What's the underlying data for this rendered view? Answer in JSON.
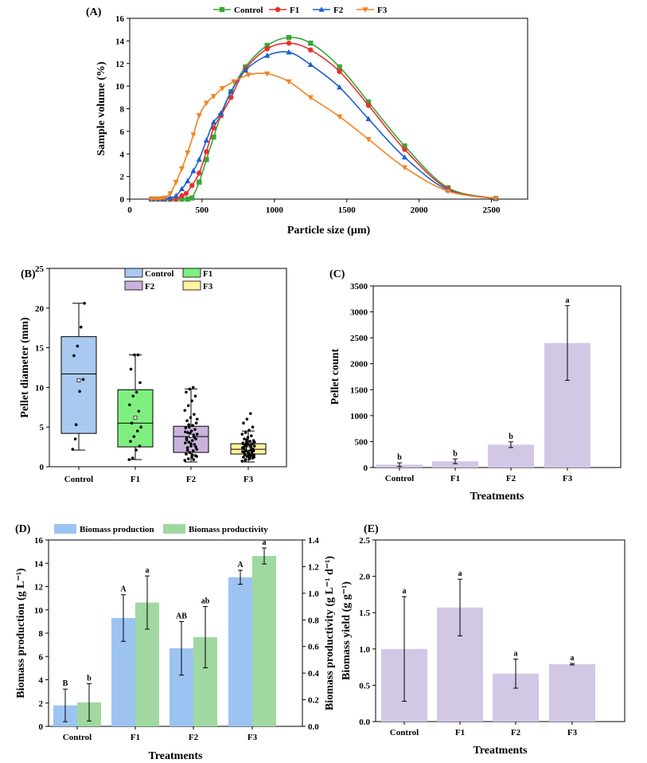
{
  "colors": {
    "control": "#3aa63a",
    "f1": "#e8312a",
    "f2": "#1f5fd0",
    "f3": "#f58220",
    "box_control": "#a9c9f0",
    "box_f1": "#7ff07f",
    "box_f2": "#c9b3dd",
    "box_f3": "#fff2a0",
    "bar_purple": "#d3c7e6",
    "bar_blue": "#9dc3f2",
    "bar_green": "#9fd8a0"
  },
  "chart_data": [
    {
      "id": "A",
      "type": "line",
      "panel_label": "(A)",
      "xlabel": "Particle size (μm)",
      "ylabel": "Sample volume (%)",
      "xlim": [
        0,
        2750
      ],
      "ylim": [
        0,
        16
      ],
      "xticks": [
        "0",
        "500",
        "1000",
        "1500",
        "2000",
        "2500"
      ],
      "yticks": [
        "0",
        "2",
        "4",
        "6",
        "8",
        "10",
        "12",
        "14",
        "16"
      ],
      "legend_position": "top",
      "series": [
        {
          "name": "Control",
          "marker": "square",
          "x": [
            150,
            180,
            210,
            240,
            280,
            320,
            360,
            400,
            430,
            480,
            530,
            580,
            630,
            700,
            800,
            950,
            1100,
            1250,
            1450,
            1650,
            1900,
            2200,
            2530
          ],
          "y": [
            0,
            0,
            0,
            0,
            0,
            0,
            0,
            0,
            0.1,
            1.5,
            3.5,
            5.5,
            7.4,
            9.5,
            11.7,
            13.6,
            14.3,
            13.8,
            11.7,
            8.6,
            4.7,
            1.0,
            0.05
          ]
        },
        {
          "name": "F1",
          "marker": "circle",
          "x": [
            150,
            180,
            210,
            240,
            280,
            320,
            360,
            390,
            430,
            480,
            530,
            580,
            630,
            700,
            800,
            950,
            1100,
            1250,
            1450,
            1650,
            1900,
            2200,
            2530
          ],
          "y": [
            0,
            0,
            0,
            0,
            0,
            0,
            0.3,
            0.5,
            1.2,
            2.3,
            4.2,
            6.3,
            7.4,
            9.0,
            11.5,
            13.3,
            13.8,
            13.2,
            11.3,
            8.3,
            4.4,
            0.9,
            0.05
          ]
        },
        {
          "name": "F2",
          "marker": "triangle-up",
          "x": [
            150,
            180,
            210,
            240,
            280,
            320,
            360,
            400,
            440,
            480,
            530,
            580,
            630,
            700,
            800,
            950,
            1100,
            1250,
            1450,
            1650,
            1900,
            2200,
            2530
          ],
          "y": [
            0,
            0,
            0,
            0,
            0.1,
            0.3,
            0.9,
            1.6,
            2.5,
            3.5,
            5.2,
            6.8,
            7.6,
            9.5,
            11.4,
            12.7,
            13.0,
            11.9,
            9.9,
            7.1,
            3.7,
            0.8,
            0.05
          ]
        },
        {
          "name": "F3",
          "marker": "triangle-down",
          "x": [
            150,
            180,
            210,
            240,
            280,
            320,
            360,
            400,
            440,
            480,
            530,
            580,
            640,
            720,
            820,
            950,
            1100,
            1250,
            1450,
            1650,
            1900,
            2200,
            2530
          ],
          "y": [
            0,
            0,
            0,
            0.1,
            0.5,
            1.5,
            2.7,
            4.1,
            5.7,
            7.4,
            8.5,
            9.1,
            9.8,
            10.4,
            11.0,
            11.1,
            10.4,
            9.0,
            7.3,
            5.3,
            2.8,
            0.7,
            0.05
          ]
        }
      ]
    },
    {
      "id": "B",
      "type": "box",
      "panel_label": "(B)",
      "ylabel": "Pellet diameter (mm)",
      "ylim": [
        0,
        25
      ],
      "yticks": [
        "0",
        "5",
        "10",
        "15",
        "20",
        "25"
      ],
      "categories": [
        "Control",
        "F1",
        "F2",
        "F3"
      ],
      "legend": [
        "Control",
        "F1",
        "F2",
        "F3"
      ],
      "boxes": [
        {
          "name": "Control",
          "whisker_low": 2.1,
          "q1": 4.2,
          "median": 11.7,
          "q3": 16.4,
          "whisker_high": 20.6,
          "mean": 10.9,
          "points": [
            2.2,
            5.3,
            9.5,
            11.0,
            14.0,
            15.2,
            17.6,
            20.6,
            3.5
          ]
        },
        {
          "name": "F1",
          "whisker_low": 0.9,
          "q1": 2.5,
          "median": 5.5,
          "q3": 9.7,
          "whisker_high": 14.1,
          "mean": 6.2,
          "points": [
            0.9,
            1.1,
            2.1,
            2.6,
            3.2,
            3.8,
            4.5,
            5.0,
            5.5,
            6.2,
            7.0,
            7.8,
            8.9,
            9.4,
            10.6,
            12.3,
            14.1,
            14.1
          ]
        },
        {
          "name": "F2",
          "whisker_low": 0.6,
          "q1": 1.8,
          "median": 3.8,
          "q3": 5.1,
          "whisker_high": 9.8,
          "mean": 3.9,
          "points": [
            0.8,
            1.0,
            1.2,
            1.4,
            1.6,
            1.8,
            2.0,
            2.2,
            2.4,
            2.6,
            2.8,
            3.0,
            3.1,
            3.3,
            3.5,
            3.6,
            3.8,
            4.0,
            4.1,
            4.3,
            4.5,
            4.7,
            4.9,
            5.0,
            5.2,
            5.5,
            5.8,
            6.2,
            6.6,
            7.1,
            7.7,
            8.3,
            8.9,
            9.4,
            9.8,
            10.0,
            1.3,
            2.1,
            2.9,
            3.7,
            4.4,
            5.3,
            1.5,
            2.5,
            3.4,
            4.2,
            0.9,
            6.0
          ]
        },
        {
          "name": "F3",
          "whisker_low": 0.6,
          "q1": 1.6,
          "median": 2.2,
          "q3": 2.9,
          "whisker_high": 4.5,
          "mean": 2.3,
          "points": [
            0.7,
            0.9,
            1.0,
            1.1,
            1.2,
            1.3,
            1.4,
            1.5,
            1.6,
            1.7,
            1.8,
            1.9,
            2.0,
            2.1,
            2.2,
            2.3,
            2.4,
            2.5,
            2.6,
            2.7,
            2.8,
            2.9,
            3.0,
            3.1,
            3.2,
            3.3,
            3.5,
            3.7,
            3.9,
            4.1,
            4.3,
            4.6,
            5.0,
            5.5,
            6.0,
            6.7,
            1.2,
            1.5,
            1.8,
            2.1,
            2.4,
            2.7,
            1.0,
            1.4,
            1.9,
            2.3,
            2.6,
            3.1,
            0.8,
            1.6,
            2.2,
            2.9,
            3.4,
            1.3,
            2.0,
            2.5
          ]
        }
      ]
    },
    {
      "id": "C",
      "type": "bar",
      "panel_label": "(C)",
      "xlabel": "Treatments",
      "ylabel": "Pellet count",
      "ylim": [
        0,
        3500
      ],
      "yticks": [
        "0",
        "500",
        "1000",
        "1500",
        "2000",
        "2500",
        "3000",
        "3500"
      ],
      "categories": [
        "Control",
        "F1",
        "F2",
        "F3"
      ],
      "values": [
        55,
        120,
        440,
        2400
      ],
      "errors": [
        35,
        45,
        55,
        720
      ],
      "significance": [
        "b",
        "b",
        "b",
        "a"
      ]
    },
    {
      "id": "D",
      "type": "bar",
      "panel_label": "(D)",
      "xlabel": "Treatments",
      "ylabel": "Biomass production (g L⁻¹)",
      "ylabel_right": "Biomass productivity (g L⁻¹ d⁻¹)",
      "ylim": [
        0,
        16
      ],
      "ylim_right": [
        0,
        1.4
      ],
      "yticks": [
        "0",
        "2",
        "4",
        "6",
        "8",
        "10",
        "12",
        "14",
        "16"
      ],
      "yticks_right": [
        "0.0",
        "0.2",
        "0.4",
        "0.6",
        "0.8",
        "1.0",
        "1.2",
        "1.4"
      ],
      "categories": [
        "Control",
        "F1",
        "F2",
        "F3"
      ],
      "series": [
        {
          "name": "Biomass production",
          "axis": "left",
          "values": [
            1.8,
            9.3,
            6.7,
            12.8
          ],
          "errors": [
            1.4,
            2.0,
            2.3,
            0.6
          ],
          "significance": [
            "B",
            "A",
            "AB",
            "A"
          ]
        },
        {
          "name": "Biomass productivity",
          "axis": "right",
          "values": [
            0.18,
            0.93,
            0.67,
            1.28
          ],
          "errors": [
            0.14,
            0.2,
            0.23,
            0.06
          ],
          "significance": [
            "b",
            "a",
            "ab",
            "a"
          ]
        }
      ]
    },
    {
      "id": "E",
      "type": "bar",
      "panel_label": "(E)",
      "xlabel": "Treatments",
      "ylabel": "Biomass yield (g g⁻¹)",
      "ylim": [
        0,
        2.5
      ],
      "yticks": [
        "0.0",
        "0.5",
        "1.0",
        "1.5",
        "2.0",
        "2.5"
      ],
      "categories": [
        "Control",
        "F1",
        "F2",
        "F3"
      ],
      "values": [
        1.0,
        1.57,
        0.66,
        0.79
      ],
      "errors": [
        0.72,
        0.39,
        0.2,
        0.01
      ],
      "significance": [
        "a",
        "a",
        "a",
        "a"
      ]
    }
  ]
}
